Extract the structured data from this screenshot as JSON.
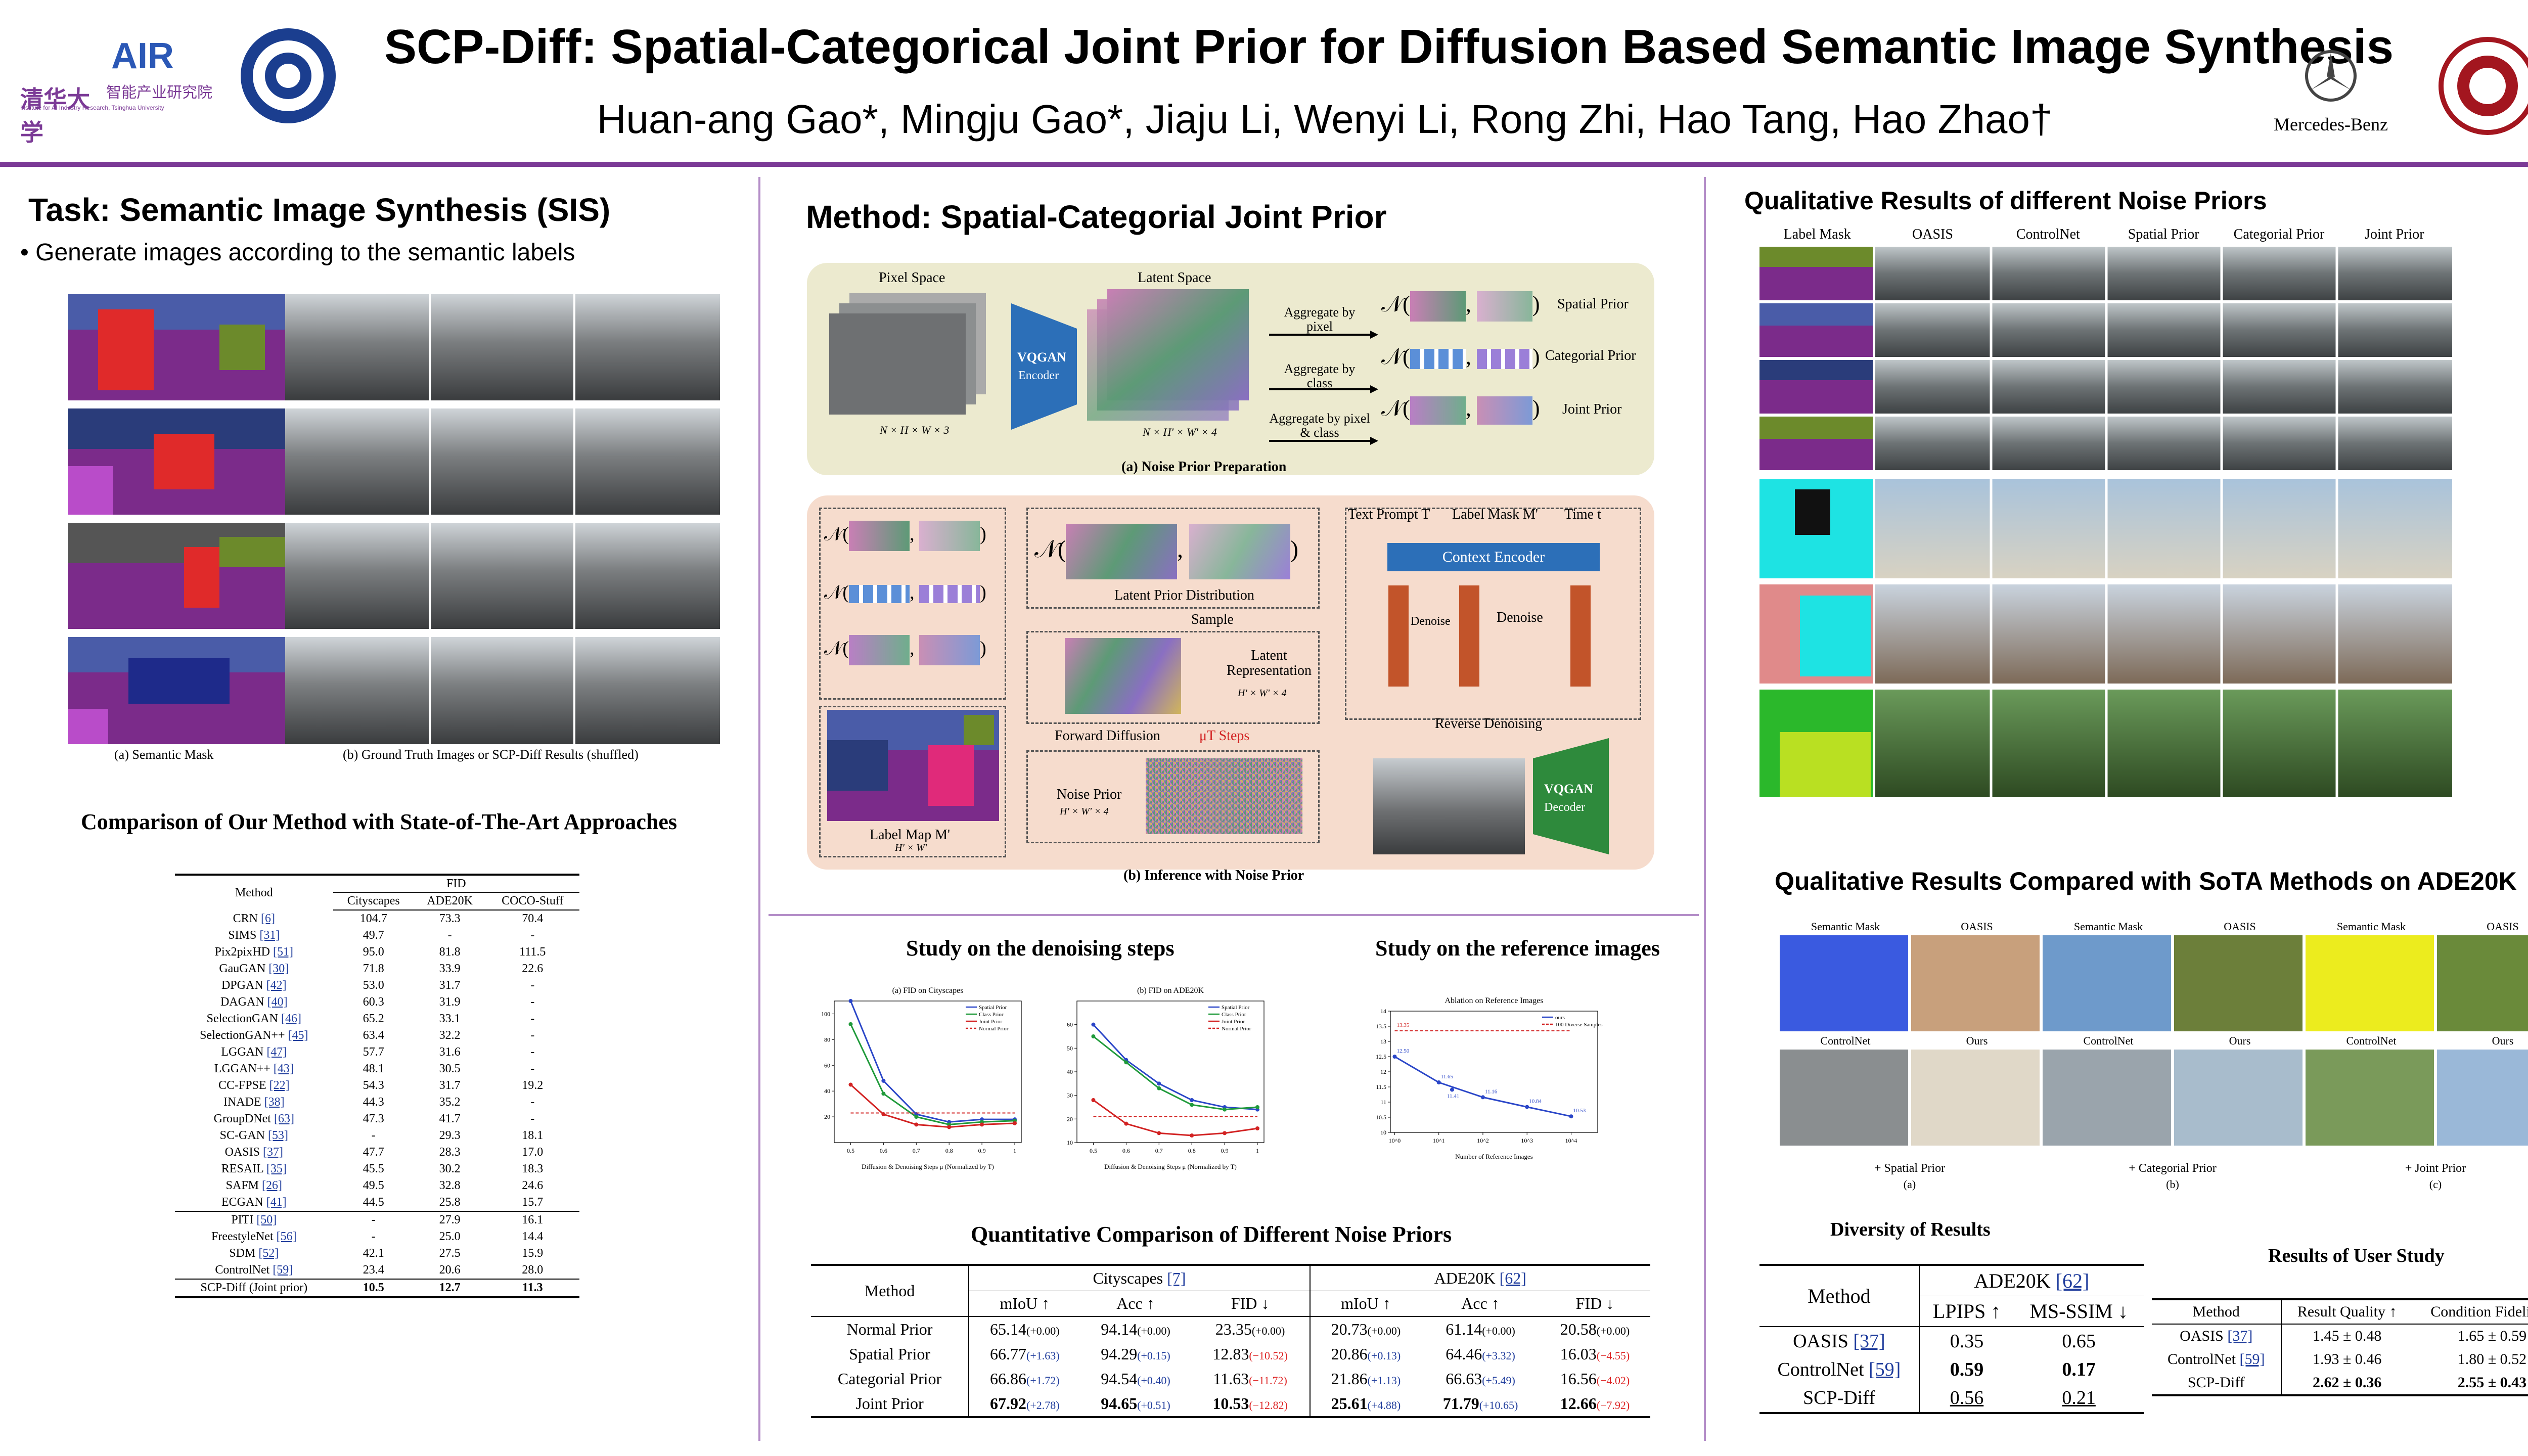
{
  "header": {
    "title": "SCP-Diff: Spatial-Categorical Joint Prior for Diffusion Based Semantic Image Synthesis",
    "authors": "Huan-ang Gao*, Mingju Gao*, Jiaju Li, Wenyi Li, Rong Zhi, Hao Tang, Hao Zhao†",
    "logos": {
      "tsinghua_text": "清华大学",
      "air_text": "AIR",
      "air_cn": "智能产业研究院",
      "air_en": "Institute for AI Industry Research, Tsinghua University",
      "mercedes_text": "Mercedes-Benz"
    },
    "colors": {
      "accent": "#7b3a96",
      "divider": "#b48ec8"
    }
  },
  "left": {
    "task_title": "Task: Semantic Image Synthesis (SIS)",
    "task_bullet": "• Generate images according to the semantic labels",
    "caption_a": "(a) Semantic Mask",
    "caption_b": "(b) Ground Truth Images or SCP-Diff Results (shuffled)",
    "sota_title": "Comparison of Our Method with State-of-The-Art Approaches",
    "sota_table": {
      "col_method": "Method",
      "col_group": "FID",
      "cols": [
        "Cityscapes",
        "ADE20K",
        "COCO-Stuff"
      ],
      "group1": [
        [
          "CRN",
          "[6]",
          "104.7",
          "73.3",
          "70.4"
        ],
        [
          "SIMS",
          "[31]",
          "49.7",
          "-",
          "-"
        ],
        [
          "Pix2pixHD",
          "[51]",
          "95.0",
          "81.8",
          "111.5"
        ],
        [
          "GauGAN",
          "[30]",
          "71.8",
          "33.9",
          "22.6"
        ],
        [
          "DPGAN",
          "[42]",
          "53.0",
          "31.7",
          "-"
        ],
        [
          "DAGAN",
          "[40]",
          "60.3",
          "31.9",
          "-"
        ],
        [
          "SelectionGAN",
          "[46]",
          "65.2",
          "33.1",
          "-"
        ],
        [
          "SelectionGAN++",
          "[45]",
          "63.4",
          "32.2",
          "-"
        ],
        [
          "LGGAN",
          "[47]",
          "57.7",
          "31.6",
          "-"
        ],
        [
          "LGGAN++",
          "[43]",
          "48.1",
          "30.5",
          "-"
        ],
        [
          "CC-FPSE",
          "[22]",
          "54.3",
          "31.7",
          "19.2"
        ],
        [
          "INADE",
          "[38]",
          "44.3",
          "35.2",
          "-"
        ],
        [
          "GroupDNet",
          "[63]",
          "47.3",
          "41.7",
          "-"
        ],
        [
          "SC-GAN",
          "[53]",
          "-",
          "29.3",
          "18.1"
        ],
        [
          "OASIS",
          "[37]",
          "47.7",
          "28.3",
          "17.0"
        ],
        [
          "RESAIL",
          "[35]",
          "45.5",
          "30.2",
          "18.3"
        ],
        [
          "SAFM",
          "[26]",
          "49.5",
          "32.8",
          "24.6"
        ],
        [
          "ECGAN",
          "[41]",
          "44.5",
          "25.8",
          "15.7"
        ]
      ],
      "group2": [
        [
          "PITI",
          "[50]",
          "-",
          "27.9",
          "16.1"
        ],
        [
          "FreestyleNet",
          "[56]",
          "-",
          "25.0",
          "14.4"
        ],
        [
          "SDM",
          "[52]",
          "42.1",
          "27.5",
          "15.9"
        ],
        [
          "ControlNet",
          "[59]",
          "23.4",
          "20.6",
          "28.0"
        ]
      ],
      "ours": [
        "SCP-Diff (Joint prior)",
        "10.5",
        "12.7",
        "11.3"
      ]
    }
  },
  "middle": {
    "method_title": "Method: Spatial-Categorial Joint Prior",
    "prep": {
      "pixel_space": "Pixel Space",
      "latent_space": "Latent Space",
      "vqgan": "VQGAN",
      "encoder": "Encoder",
      "pixel_dims": "N × H × W × 3",
      "latent_dims": "N × H' × W' × 4",
      "agg_pixel": "Aggregate by pixel",
      "agg_class": "Aggregate by class",
      "agg_both": "Aggregate by pixel & class",
      "spatial_prior": "Spatial Prior",
      "categorial_prior": "Categorial Prior",
      "joint_prior": "Joint Prior",
      "caption": "(a) Noise Prior Preparation"
    },
    "infer": {
      "latent_prior": "Latent Prior Distribution",
      "sample": "Sample",
      "latent_rep": "Latent Representation",
      "latent_rep_dims": "H' × W' × 4",
      "forward": "Forward Diffusion",
      "steps": "μT Steps",
      "noise_prior": "Noise Prior",
      "noise_dims": "H' × W' × 4",
      "label_map": "Label Map M'",
      "label_dims": "H' × W'",
      "text_prompt": "Text Prompt T",
      "label_mask": "Label Mask M'",
      "time": "Time t",
      "context_encoder": "Context Encoder",
      "denoise": "Denoise",
      "reverse": "Reverse Denoising",
      "vqgan": "VQGAN",
      "decoder": "Decoder",
      "caption": "(b) Inference with Noise Prior"
    },
    "denoise_title": "Study on the denoising steps",
    "reference_title": "Study on the reference images",
    "quant_title": "Quantitative Comparison of Different Noise Priors",
    "quant_table": {
      "col_method": "Method",
      "group1": "Cityscapes",
      "group1_cite": "[7]",
      "group2": "ADE20K",
      "group2_cite": "[62]",
      "cols": [
        "mIoU ↑",
        "Acc ↑",
        "FID ↓",
        "mIoU ↑",
        "Acc ↑",
        "FID ↓"
      ],
      "rows": [
        {
          "name": "Normal Prior",
          "cells": [
            [
              "65.14",
              "(+0.00)",
              "n"
            ],
            [
              "94.14",
              "(+0.00)",
              "n"
            ],
            [
              "23.35",
              "(+0.00)",
              "n"
            ],
            [
              "20.73",
              "(+0.00)",
              "n"
            ],
            [
              "61.14",
              "(+0.00)",
              "n"
            ],
            [
              "20.58",
              "(+0.00)",
              "n"
            ]
          ]
        },
        {
          "name": "Spatial Prior",
          "cells": [
            [
              "66.77",
              "(+1.63)",
              "p"
            ],
            [
              "94.29",
              "(+0.15)",
              "p"
            ],
            [
              "12.83",
              "(−10.52)",
              "m"
            ],
            [
              "20.86",
              "(+0.13)",
              "p"
            ],
            [
              "64.46",
              "(+3.32)",
              "p"
            ],
            [
              "16.03",
              "(−4.55)",
              "m"
            ]
          ]
        },
        {
          "name": "Categorial Prior",
          "cells": [
            [
              "66.86",
              "(+1.72)",
              "p"
            ],
            [
              "94.54",
              "(+0.40)",
              "p"
            ],
            [
              "11.63",
              "(−11.72)",
              "m"
            ],
            [
              "21.86",
              "(+1.13)",
              "p"
            ],
            [
              "66.63",
              "(+5.49)",
              "p"
            ],
            [
              "16.56",
              "(−4.02)",
              "m"
            ]
          ]
        },
        {
          "name": "Joint Prior",
          "cells": [
            [
              "67.92",
              "(+2.78)",
              "p"
            ],
            [
              "94.65",
              "(+0.51)",
              "p"
            ],
            [
              "10.53",
              "(−12.82)",
              "m"
            ],
            [
              "25.61",
              "(+4.88)",
              "p"
            ],
            [
              "71.79",
              "(+10.65)",
              "p"
            ],
            [
              "12.66",
              "(−7.92)",
              "m"
            ]
          ]
        }
      ]
    }
  },
  "right": {
    "qual_title": "Qualitative Results of different Noise Priors",
    "qual_cols": [
      "Label Mask",
      "OASIS",
      "ControlNet",
      "Spatial Prior",
      "Categorial Prior",
      "Joint Prior"
    ],
    "sota_title": "Qualitative Results Compared with SoTA Methods on ADE20K",
    "sota_labels_top": [
      "Semantic Mask",
      "OASIS",
      "Semantic Mask",
      "OASIS",
      "Semantic Mask",
      "OASIS"
    ],
    "sota_labels_bottom": [
      "ControlNet",
      "Ours",
      "ControlNet",
      "Ours",
      "ControlNet",
      "Ours"
    ],
    "sota_groups": [
      "+ Spatial Prior",
      "+ Categorial Prior",
      "+ Joint Prior"
    ],
    "sota_subcaps": [
      "(a)",
      "(b)",
      "(c)"
    ],
    "diversity_title": "Diversity of Results",
    "diversity_table": {
      "col_method": "Method",
      "group": "ADE20K",
      "group_cite": "[62]",
      "cols": [
        "LPIPS ↑",
        "MS-SSIM ↓"
      ],
      "rows": [
        [
          "OASIS",
          "[37]",
          "0.35",
          "0.65"
        ],
        [
          "ControlNet",
          "[59]",
          "0.59",
          "0.17"
        ],
        [
          "SCP-Diff",
          "",
          "0.56",
          "0.21"
        ]
      ]
    },
    "user_title": "Results of User Study",
    "user_table": {
      "cols": [
        "Method",
        "Result Quality ↑",
        "Condition Fidelity ↑"
      ],
      "rows": [
        [
          "OASIS",
          "[37]",
          "1.45 ± 0.48",
          "1.65 ± 0.59"
        ],
        [
          "ControlNet",
          "[59]",
          "1.93 ± 0.46",
          "1.80 ± 0.52"
        ],
        [
          "SCP-Diff",
          "",
          "2.62 ± 0.36",
          "2.55 ± 0.43"
        ]
      ]
    }
  },
  "chart_data": [
    {
      "type": "line",
      "title": "(a) FID on Cityscapes",
      "xlabel": "Diffusion & Denoising Steps μ (Normalized by T)",
      "ylabel": "",
      "x": [
        0.5,
        0.6,
        0.7,
        0.8,
        0.9,
        1.0
      ],
      "xlim": [
        0.45,
        1.02
      ],
      "ylim": [
        0,
        110
      ],
      "yticks": [
        20,
        40,
        60,
        80,
        100
      ],
      "series": [
        {
          "name": "Spatial Prior",
          "color": "#2a46c8",
          "dash": false,
          "values": [
            110,
            48,
            22,
            16,
            18,
            18
          ]
        },
        {
          "name": "Class Prior",
          "color": "#1f9a3a",
          "dash": false,
          "values": [
            92,
            38,
            20,
            14,
            16,
            17
          ]
        },
        {
          "name": "Joint Prior",
          "color": "#d22222",
          "dash": false,
          "values": [
            45,
            22,
            14,
            12,
            14,
            15
          ]
        },
        {
          "name": "Normal Prior",
          "color": "#d22222",
          "dash": true,
          "values": [
            23,
            23,
            23,
            23,
            23,
            23
          ]
        }
      ]
    },
    {
      "type": "line",
      "title": "(b) FID on ADE20K",
      "xlabel": "Diffusion & Denoising Steps μ (Normalized by T)",
      "ylabel": "",
      "x": [
        0.5,
        0.6,
        0.7,
        0.8,
        0.9,
        1.0
      ],
      "xlim": [
        0.45,
        1.02
      ],
      "ylim": [
        10,
        70
      ],
      "yticks": [
        10,
        20,
        30,
        40,
        50,
        60
      ],
      "series": [
        {
          "name": "Spatial Prior",
          "color": "#2a46c8",
          "dash": false,
          "values": [
            60,
            45,
            35,
            28,
            25,
            24
          ]
        },
        {
          "name": "Class Prior",
          "color": "#1f9a3a",
          "dash": false,
          "values": [
            55,
            44,
            33,
            26,
            24,
            25
          ]
        },
        {
          "name": "Joint Prior",
          "color": "#d22222",
          "dash": false,
          "values": [
            28,
            18,
            14,
            13,
            14,
            16
          ]
        },
        {
          "name": "Normal Prior",
          "color": "#d22222",
          "dash": true,
          "values": [
            21,
            21,
            21,
            21,
            21,
            21
          ]
        }
      ]
    },
    {
      "type": "line",
      "title": "Ablation on Reference Images",
      "xlabel": "Number of Reference Images",
      "ylabel": "",
      "x": [
        1,
        10,
        100,
        1000,
        10000
      ],
      "x_scale": "log",
      "xlim": [
        0.8,
        40000
      ],
      "ylim": [
        10,
        14
      ],
      "yticks": [
        10.0,
        10.5,
        11.0,
        11.5,
        12.0,
        12.5,
        13.0,
        13.5,
        14.0
      ],
      "series": [
        {
          "name": "ours",
          "color": "#2a46c8",
          "dash": false,
          "values": [
            12.5,
            11.65,
            11.16,
            10.84,
            10.53
          ],
          "labels": [
            "12.50",
            "11.65",
            "11.16",
            "10.84",
            "10.53"
          ]
        },
        {
          "name": "100 Diverse Samples",
          "color": "#d22222",
          "dash": true,
          "values": [
            13.35,
            13.35,
            13.35,
            13.35,
            13.35
          ],
          "labels": [
            "13.35"
          ]
        }
      ],
      "extra_point": {
        "x": 20,
        "y": 11.41,
        "label": "11.41"
      }
    }
  ]
}
